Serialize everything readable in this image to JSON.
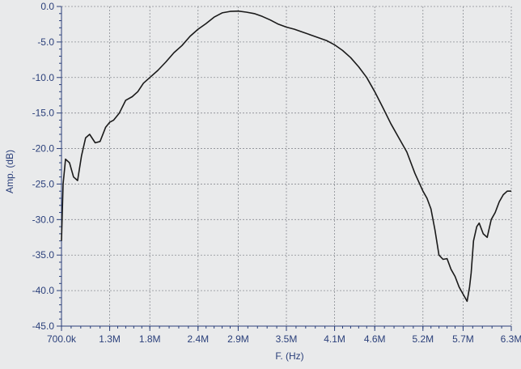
{
  "chart_data": {
    "type": "line",
    "title": "",
    "xlabel": "F. (Hz)",
    "ylabel": "Amp. (dB)",
    "x_ticks": [
      "700.0k",
      "1.3M",
      "1.8M",
      "2.4M",
      "2.9M",
      "3.5M",
      "4.1M",
      "4.6M",
      "5.2M",
      "5.7M",
      "6.3M"
    ],
    "x_tick_values": [
      0.7,
      1.3,
      1.8,
      2.4,
      2.9,
      3.5,
      4.1,
      4.6,
      5.2,
      5.7,
      6.3
    ],
    "y_ticks": [
      "0.0",
      "-5.0",
      "-10.0",
      "-15.0",
      "-20.0",
      "-25.0",
      "-30.0",
      "-35.0",
      "-40.0",
      "-45.0"
    ],
    "y_tick_values": [
      0,
      -5,
      -10,
      -15,
      -20,
      -25,
      -30,
      -35,
      -40,
      -45
    ],
    "xlim": [
      0.7,
      6.3
    ],
    "ylim": [
      -45,
      0
    ],
    "grid": true,
    "line_color": "#1a1a1a",
    "text_color": "#2a3f7a",
    "series": [
      {
        "x": [
          0.7,
          0.72,
          0.75,
          0.8,
          0.85,
          0.9,
          0.95,
          1.0,
          1.05,
          1.12,
          1.18,
          1.25,
          1.3,
          1.35,
          1.42,
          1.5,
          1.58,
          1.65,
          1.72,
          1.8,
          1.9,
          2.0,
          2.1,
          2.2,
          2.3,
          2.4,
          2.5,
          2.6,
          2.7,
          2.8,
          2.9,
          3.0,
          3.1,
          3.2,
          3.3,
          3.4,
          3.5,
          3.6,
          3.7,
          3.8,
          3.9,
          4.0,
          4.1,
          4.2,
          4.3,
          4.4,
          4.5,
          4.6,
          4.7,
          4.8,
          4.9,
          5.0,
          5.1,
          5.2,
          5.25,
          5.3,
          5.35,
          5.4,
          5.45,
          5.5,
          5.55,
          5.6,
          5.65,
          5.7,
          5.75,
          5.78,
          5.8,
          5.83,
          5.87,
          5.9,
          5.95,
          6.0,
          6.05,
          6.1,
          6.15,
          6.2,
          6.25,
          6.3
        ],
        "y": [
          -33.0,
          -25.0,
          -21.5,
          -22.0,
          -24.0,
          -24.5,
          -21.0,
          -18.5,
          -18.0,
          -19.2,
          -19.0,
          -17.0,
          -16.3,
          -16.0,
          -15.0,
          -13.2,
          -12.7,
          -12.0,
          -10.8,
          -10.0,
          -9.0,
          -7.8,
          -6.5,
          -5.5,
          -4.2,
          -3.2,
          -2.4,
          -1.5,
          -0.9,
          -0.7,
          -0.65,
          -0.8,
          -1.0,
          -1.4,
          -1.9,
          -2.5,
          -2.9,
          -3.2,
          -3.6,
          -4.0,
          -4.4,
          -4.8,
          -5.4,
          -6.2,
          -7.2,
          -8.5,
          -10.0,
          -12.0,
          -14.2,
          -16.5,
          -18.5,
          -20.5,
          -23.5,
          -26.0,
          -27.0,
          -28.5,
          -31.5,
          -35.0,
          -35.6,
          -35.5,
          -37.0,
          -38.0,
          -39.5,
          -40.5,
          -41.5,
          -39.5,
          -37.5,
          -33.0,
          -31.0,
          -30.5,
          -32.0,
          -32.5,
          -30.0,
          -29.0,
          -27.5,
          -26.5,
          -26.0,
          -26.0
        ]
      }
    ]
  }
}
